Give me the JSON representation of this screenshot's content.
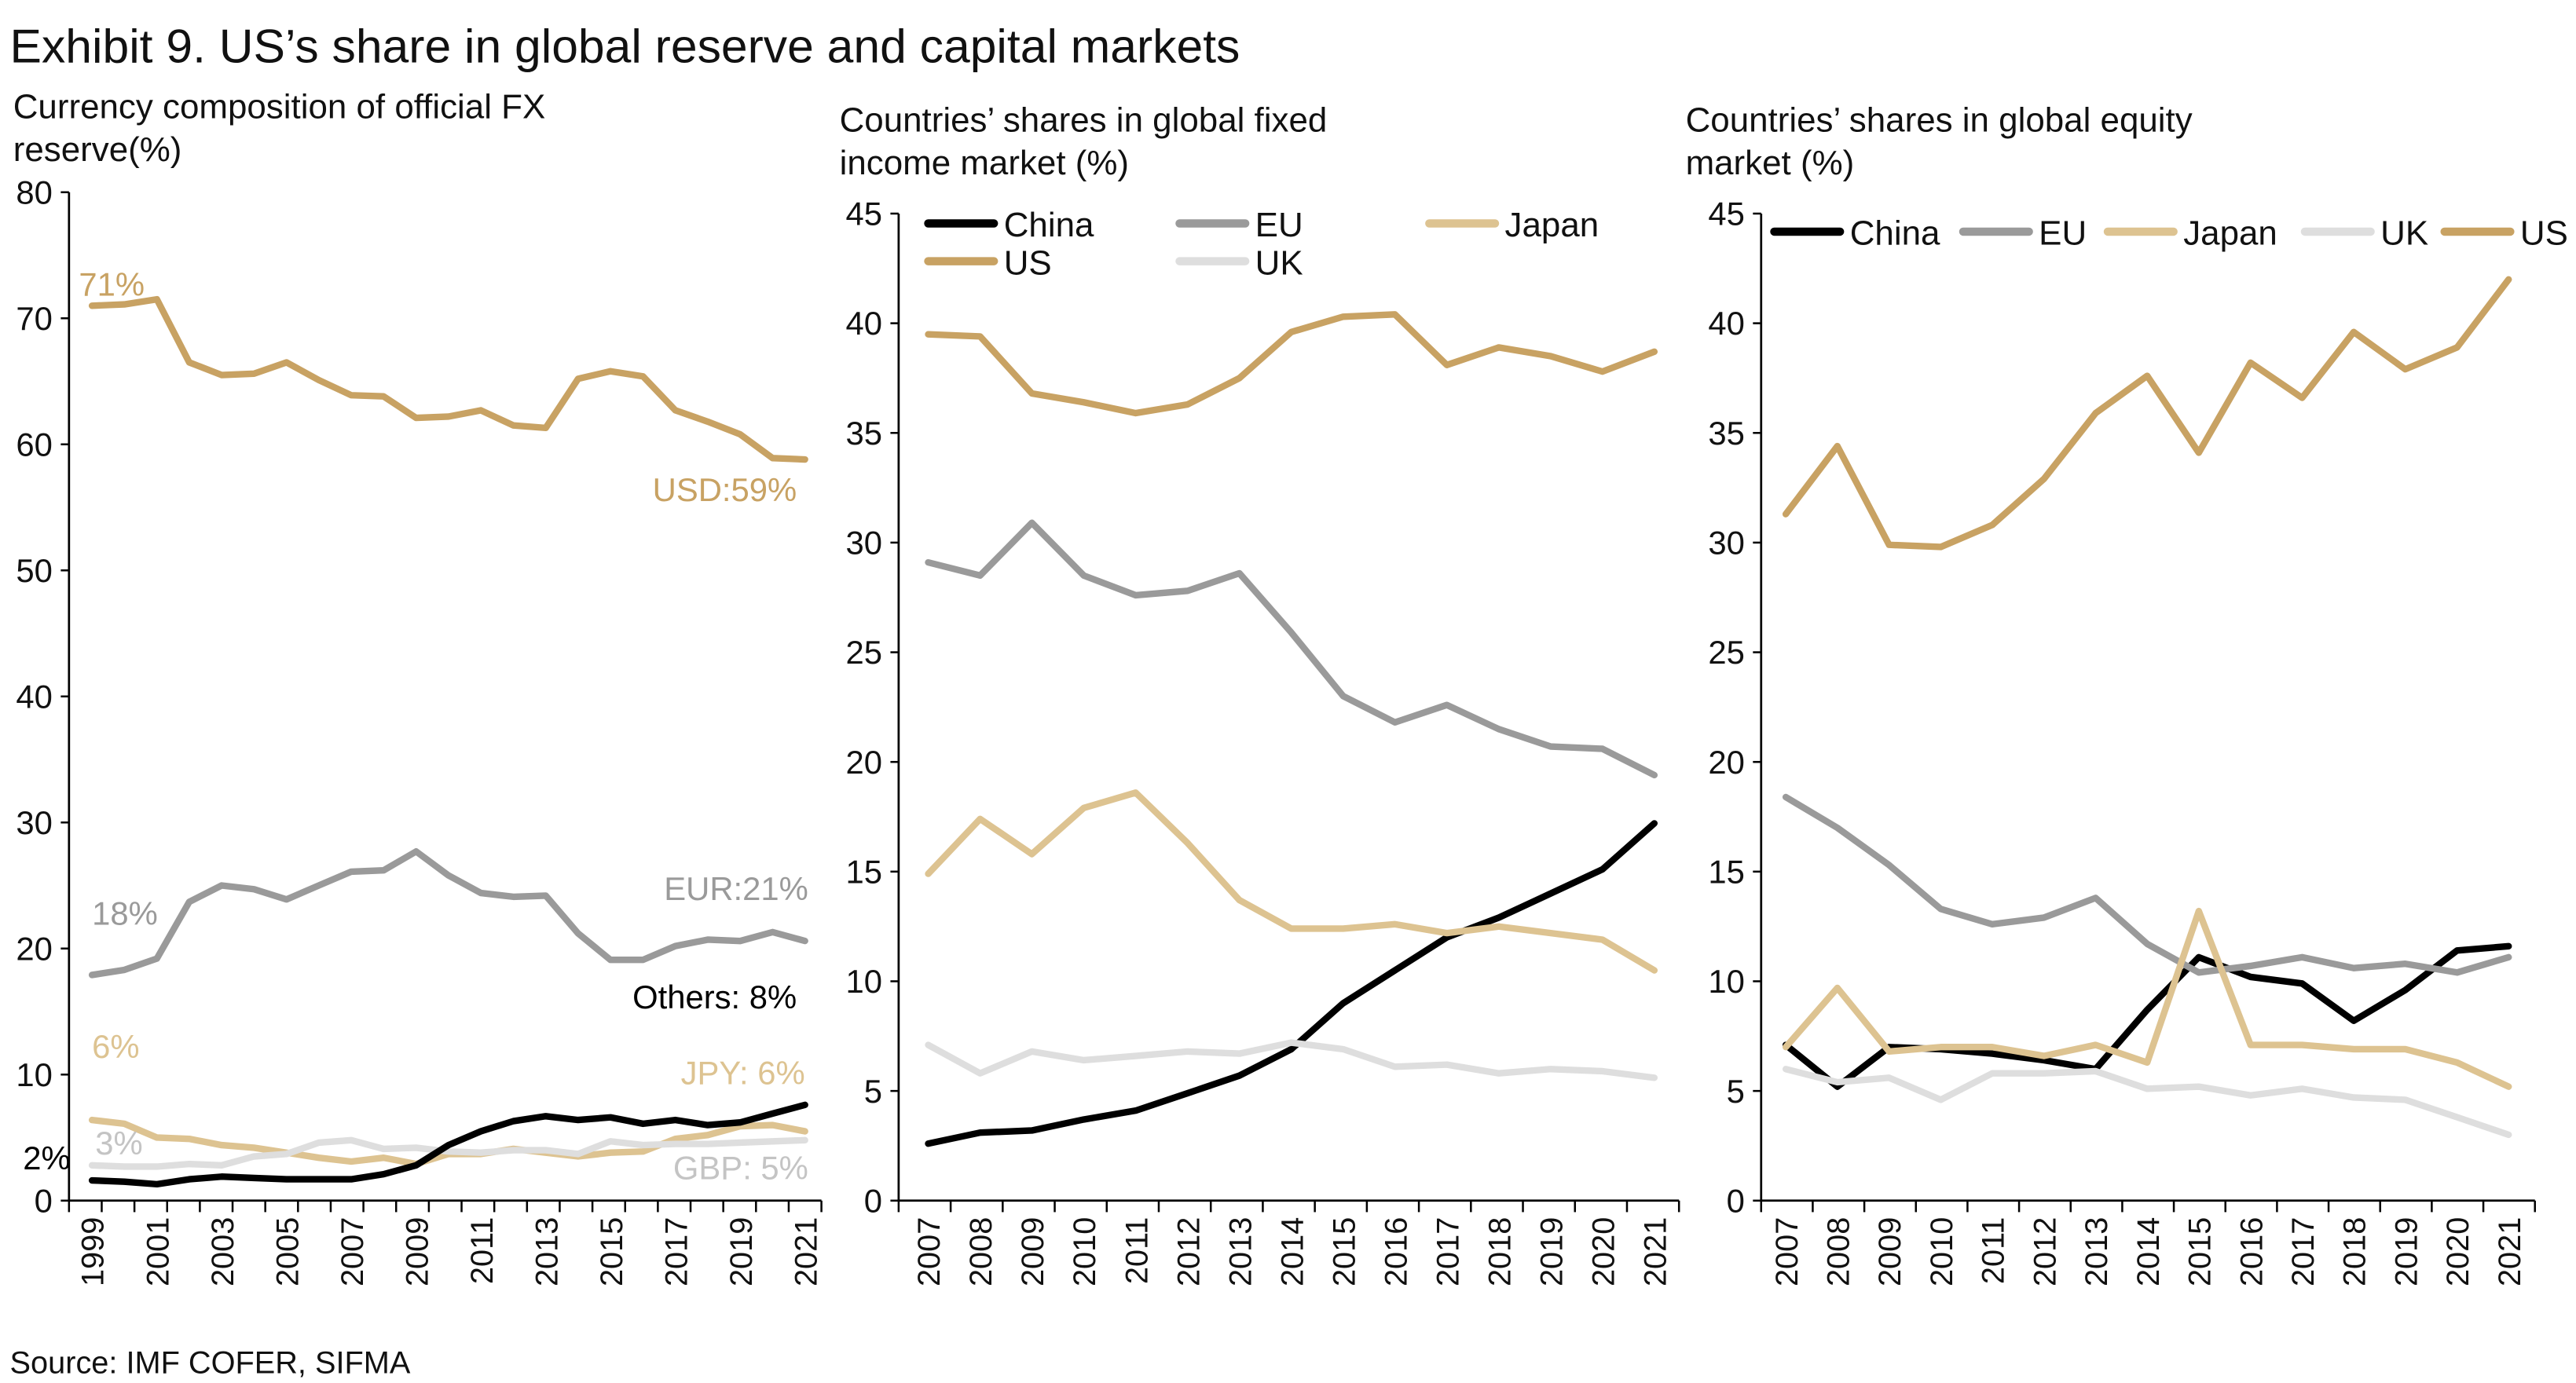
{
  "title": "Exhibit 9. US’s share in global reserve and capital markets",
  "source": "Source: IMF COFER, SIFMA",
  "colors": {
    "US": "#c8a263",
    "EU": "#9a9a9a",
    "Japan": "#ddc391",
    "UK": "#dedede",
    "China": "#000000",
    "GBP_label": "#c4c4c4"
  },
  "chart_data": [
    {
      "type": "line",
      "title_lines": [
        "Currency composition of official FX",
        "reserve(%)"
      ],
      "x": [
        1999,
        2000,
        2001,
        2002,
        2003,
        2004,
        2005,
        2006,
        2007,
        2008,
        2009,
        2010,
        2011,
        2012,
        2013,
        2014,
        2015,
        2016,
        2017,
        2018,
        2019,
        2020,
        2021
      ],
      "x_tick_labels": [
        "1999",
        "2001",
        "2003",
        "2005",
        "2007",
        "2009",
        "2011",
        "2013",
        "2015",
        "2017",
        "2019",
        "2021"
      ],
      "ylim": [
        0,
        80
      ],
      "y_ticks": [
        0,
        10,
        20,
        30,
        40,
        50,
        60,
        70,
        80
      ],
      "legend": "none",
      "series": [
        {
          "name": "USD",
          "color_key": "US",
          "values": [
            71.0,
            71.1,
            71.5,
            66.5,
            65.5,
            65.6,
            66.5,
            65.1,
            63.9,
            63.8,
            62.1,
            62.2,
            62.7,
            61.5,
            61.3,
            65.2,
            65.8,
            65.4,
            62.7,
            61.8,
            60.8,
            58.9,
            58.8
          ]
        },
        {
          "name": "EUR",
          "color_key": "EU",
          "values": [
            17.9,
            18.3,
            19.2,
            23.7,
            25.0,
            24.7,
            23.9,
            25.0,
            26.1,
            26.2,
            27.7,
            25.8,
            24.4,
            24.1,
            24.2,
            21.2,
            19.1,
            19.1,
            20.2,
            20.7,
            20.6,
            21.3,
            20.6
          ]
        },
        {
          "name": "JPY",
          "color_key": "Japan",
          "values": [
            6.4,
            6.1,
            5.0,
            4.9,
            4.4,
            4.2,
            3.8,
            3.4,
            3.1,
            3.4,
            2.9,
            3.7,
            3.7,
            4.1,
            3.8,
            3.5,
            3.8,
            3.9,
            4.9,
            5.2,
            5.9,
            6.0,
            5.5
          ]
        },
        {
          "name": "GBP",
          "color_key": "UK",
          "values": [
            2.8,
            2.7,
            2.7,
            2.9,
            2.8,
            3.5,
            3.7,
            4.6,
            4.8,
            4.1,
            4.2,
            3.9,
            3.8,
            4.0,
            4.0,
            3.7,
            4.7,
            4.4,
            4.5,
            4.5,
            4.6,
            4.7,
            4.8
          ]
        },
        {
          "name": "Others",
          "color_key": "China",
          "values": [
            1.6,
            1.5,
            1.3,
            1.7,
            1.9,
            1.8,
            1.7,
            1.7,
            1.7,
            2.1,
            2.8,
            4.4,
            5.5,
            6.3,
            6.7,
            6.4,
            6.6,
            6.1,
            6.4,
            6.0,
            6.2,
            6.9,
            7.6
          ]
        }
      ],
      "annotations": [
        {
          "text": "71%",
          "color_key": "US"
        },
        {
          "text": "USD:59%",
          "color_key": "US"
        },
        {
          "text": "18%",
          "color_key": "EU"
        },
        {
          "text": "EUR:21%",
          "color_key": "EU"
        },
        {
          "text": "Others: 8%",
          "color_key": "China"
        },
        {
          "text": "6%",
          "color_key": "Japan"
        },
        {
          "text": "JPY: 6%",
          "color_key": "Japan"
        },
        {
          "text": "3%",
          "color_key": "GBP_label"
        },
        {
          "text": "2%",
          "color_key": "China"
        },
        {
          "text": "GBP: 5%",
          "color_key": "GBP_label"
        }
      ]
    },
    {
      "type": "line",
      "title_lines": [
        "Countries’ shares in global fixed",
        "income market (%)"
      ],
      "x": [
        2007,
        2008,
        2009,
        2010,
        2011,
        2012,
        2013,
        2014,
        2015,
        2016,
        2017,
        2018,
        2019,
        2020,
        2021
      ],
      "x_tick_labels": [
        "2007",
        "2008",
        "2009",
        "2010",
        "2011",
        "2012",
        "2013",
        "2014",
        "2015",
        "2016",
        "2017",
        "2018",
        "2019",
        "2020",
        "2021"
      ],
      "ylim": [
        0,
        45
      ],
      "y_ticks": [
        0,
        5,
        10,
        15,
        20,
        25,
        30,
        35,
        40,
        45
      ],
      "legend": "top",
      "series": [
        {
          "name": "China",
          "color_key": "China",
          "values": [
            2.6,
            3.1,
            3.2,
            3.7,
            4.1,
            4.9,
            5.7,
            6.9,
            9.0,
            10.5,
            12.0,
            12.9,
            14.0,
            15.1,
            17.2
          ]
        },
        {
          "name": "EU",
          "color_key": "EU",
          "values": [
            29.1,
            28.5,
            30.9,
            28.5,
            27.6,
            27.8,
            28.6,
            25.9,
            23.0,
            21.8,
            22.6,
            21.5,
            20.7,
            20.6,
            19.4
          ]
        },
        {
          "name": "Japan",
          "color_key": "Japan",
          "values": [
            14.9,
            17.4,
            15.8,
            17.9,
            18.6,
            16.3,
            13.7,
            12.4,
            12.4,
            12.6,
            12.2,
            12.5,
            12.2,
            11.9,
            10.5
          ]
        },
        {
          "name": "US",
          "color_key": "US",
          "values": [
            39.5,
            39.4,
            36.8,
            36.4,
            35.9,
            36.3,
            37.5,
            39.6,
            40.3,
            40.4,
            38.1,
            38.9,
            38.5,
            37.8,
            38.7
          ]
        },
        {
          "name": "UK",
          "color_key": "UK",
          "values": [
            7.1,
            5.8,
            6.8,
            6.4,
            6.6,
            6.8,
            6.7,
            7.2,
            6.9,
            6.1,
            6.2,
            5.8,
            6.0,
            5.9,
            5.6
          ]
        }
      ]
    },
    {
      "type": "line",
      "title_lines": [
        "Countries’ shares in global equity",
        "market (%)"
      ],
      "x": [
        2007,
        2008,
        2009,
        2010,
        2011,
        2012,
        2013,
        2014,
        2015,
        2016,
        2017,
        2018,
        2019,
        2020,
        2021
      ],
      "x_tick_labels": [
        "2007",
        "2008",
        "2009",
        "2010",
        "2011",
        "2012",
        "2013",
        "2014",
        "2015",
        "2016",
        "2017",
        "2018",
        "2019",
        "2020",
        "2021"
      ],
      "ylim": [
        0,
        45
      ],
      "y_ticks": [
        0,
        5,
        10,
        15,
        20,
        25,
        30,
        35,
        40,
        45
      ],
      "legend": "top",
      "series": [
        {
          "name": "China",
          "color_key": "China",
          "values": [
            7.1,
            5.2,
            7.0,
            6.9,
            6.7,
            6.4,
            6.0,
            8.7,
            11.1,
            10.2,
            9.9,
            8.2,
            9.6,
            11.4,
            11.6
          ]
        },
        {
          "name": "EU",
          "color_key": "EU",
          "values": [
            18.4,
            17.0,
            15.3,
            13.3,
            12.6,
            12.9,
            13.8,
            11.7,
            10.4,
            10.7,
            11.1,
            10.6,
            10.8,
            10.4,
            11.1
          ]
        },
        {
          "name": "Japan",
          "color_key": "Japan",
          "values": [
            7.0,
            9.7,
            6.8,
            7.0,
            7.0,
            6.6,
            7.1,
            6.3,
            13.2,
            7.1,
            7.1,
            6.9,
            6.9,
            6.3,
            5.2
          ]
        },
        {
          "name": "UK",
          "color_key": "UK",
          "values": [
            6.0,
            5.4,
            5.6,
            4.6,
            5.8,
            5.8,
            5.9,
            5.1,
            5.2,
            4.8,
            5.1,
            4.7,
            4.6,
            3.8,
            3.0
          ]
        },
        {
          "name": "US",
          "color_key": "US",
          "values": [
            31.3,
            34.4,
            29.9,
            29.8,
            30.8,
            32.9,
            35.9,
            37.6,
            34.1,
            38.2,
            36.6,
            39.6,
            37.9,
            38.9,
            42.0
          ]
        }
      ]
    }
  ]
}
